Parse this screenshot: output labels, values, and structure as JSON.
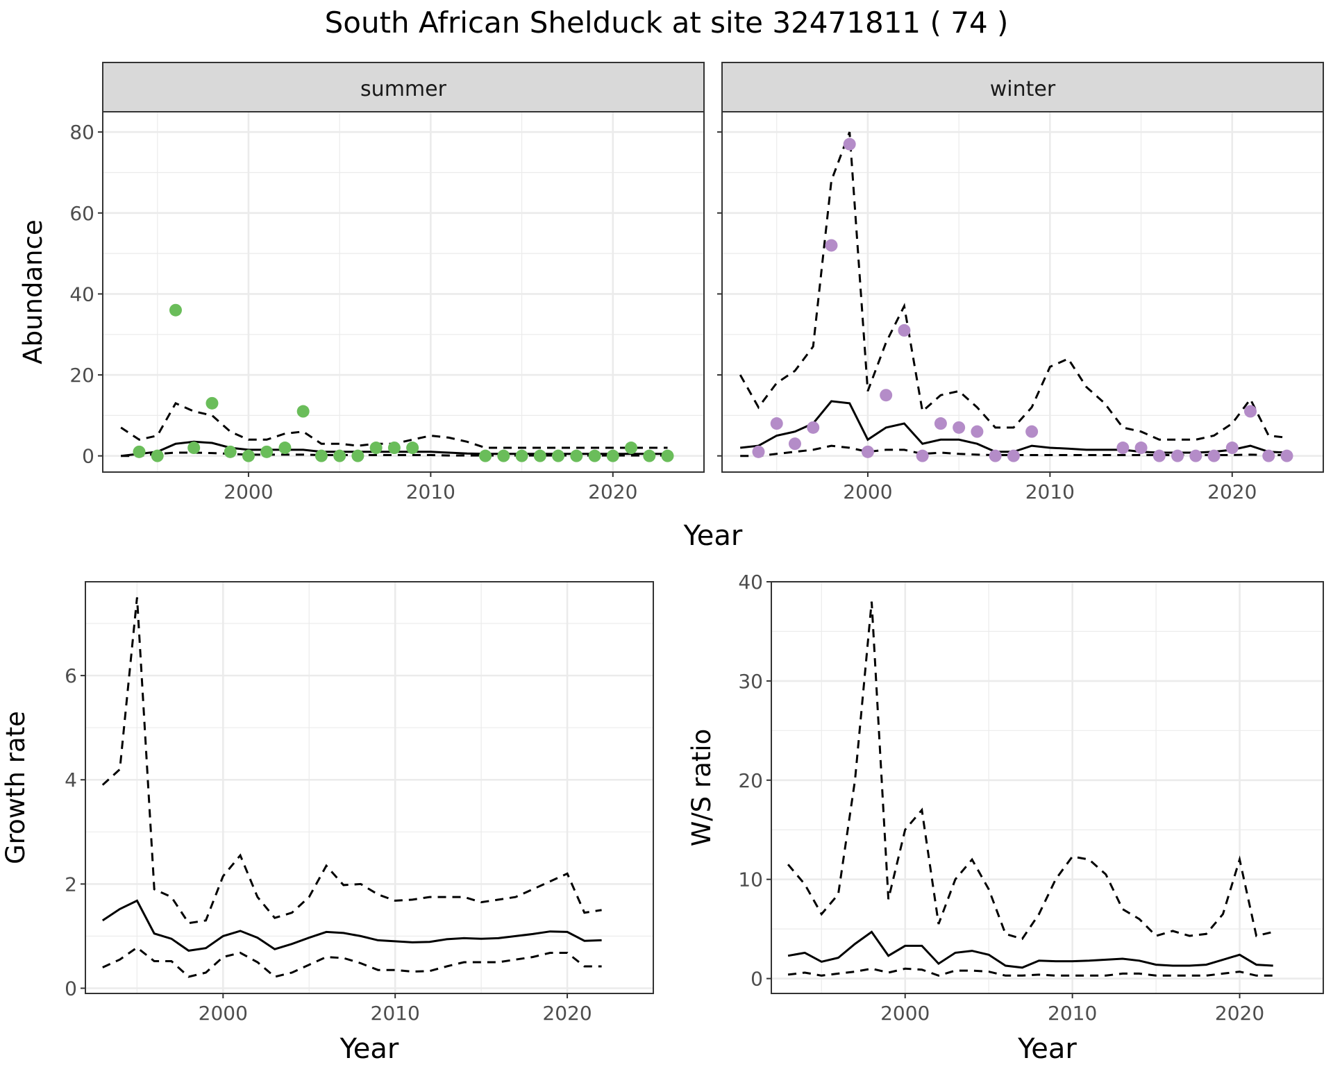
{
  "title": "South African Shelduck at site 32471811 ( 74 )",
  "colors": {
    "summer": "#6abd5a",
    "winter": "#b48cc8",
    "strip": "#d9d9d9",
    "grid": "#ebebeb"
  },
  "chart_data": [
    {
      "type": "line+scatter",
      "panel": "summer",
      "strip_label": "summer",
      "xlabel": "Year",
      "ylabel": "Abundance",
      "xlim": [
        1992,
        2025
      ],
      "ylim": [
        -4,
        85
      ],
      "xticks": [
        2000,
        2010,
        2020
      ],
      "yticks": [
        0,
        20,
        40,
        60,
        80
      ],
      "points": {
        "x": [
          1994,
          1995,
          1996,
          1997,
          1998,
          1999,
          2000,
          2001,
          2002,
          2003,
          2004,
          2005,
          2006,
          2007,
          2008,
          2009,
          2013,
          2014,
          2015,
          2016,
          2017,
          2018,
          2019,
          2020,
          2021,
          2022,
          2023
        ],
        "y": [
          1,
          0,
          36,
          2,
          13,
          1,
          0,
          1,
          2,
          11,
          0,
          0,
          0,
          2,
          2,
          2,
          0,
          0,
          0,
          0,
          0,
          0,
          0,
          0,
          2,
          0,
          0
        ]
      },
      "years": [
        1993,
        1994,
        1995,
        1996,
        1997,
        1998,
        1999,
        2000,
        2001,
        2002,
        2003,
        2004,
        2005,
        2006,
        2007,
        2008,
        2009,
        2010,
        2011,
        2012,
        2013,
        2014,
        2015,
        2016,
        2017,
        2018,
        2019,
        2020,
        2021,
        2022,
        2023
      ],
      "mean": [
        0,
        0.5,
        1,
        3,
        3.5,
        3.2,
        2,
        1.5,
        1.5,
        1.5,
        1.5,
        1,
        1,
        1,
        1,
        1,
        1,
        1,
        0.8,
        0.6,
        0.5,
        0.5,
        0.5,
        0.5,
        0.5,
        0.5,
        0.5,
        0.5,
        0.5,
        0.5,
        0.5
      ],
      "upper": [
        7,
        4,
        5,
        13,
        11,
        10,
        6,
        4,
        4,
        5.5,
        6,
        3,
        3,
        2.5,
        3,
        3,
        4,
        5,
        4.5,
        3.5,
        2,
        2,
        2,
        2,
        2,
        2,
        2,
        2,
        2,
        2,
        2
      ],
      "lower": [
        0,
        0,
        0.5,
        0.8,
        0.8,
        0.7,
        0.5,
        0.3,
        0.3,
        0.3,
        0.3,
        0.2,
        0.2,
        0.2,
        0.2,
        0.2,
        0.2,
        0.2,
        0.1,
        0.1,
        0.1,
        0.1,
        0.1,
        0.1,
        0.1,
        0.1,
        0.1,
        0.1,
        0.1,
        0.1,
        0.1
      ]
    },
    {
      "type": "line+scatter",
      "panel": "winter",
      "strip_label": "winter",
      "xlabel": "Year",
      "ylabel": "Abundance",
      "xlim": [
        1992,
        2025
      ],
      "ylim": [
        -4,
        85
      ],
      "xticks": [
        2000,
        2010,
        2020
      ],
      "yticks": [
        0,
        20,
        40,
        60,
        80
      ],
      "points": {
        "x": [
          1994,
          1995,
          1996,
          1997,
          1998,
          1999,
          2000,
          2001,
          2002,
          2003,
          2004,
          2005,
          2006,
          2007,
          2008,
          2009,
          2014,
          2015,
          2016,
          2017,
          2018,
          2019,
          2020,
          2021,
          2022,
          2023
        ],
        "y": [
          1,
          8,
          3,
          7,
          52,
          77,
          1,
          15,
          31,
          0,
          8,
          7,
          6,
          0,
          0,
          6,
          2,
          2,
          0,
          0,
          0,
          0,
          2,
          11,
          0,
          0
        ]
      },
      "years": [
        1993,
        1994,
        1995,
        1996,
        1997,
        1998,
        1999,
        2000,
        2001,
        2002,
        2003,
        2004,
        2005,
        2006,
        2007,
        2008,
        2009,
        2010,
        2011,
        2012,
        2013,
        2014,
        2015,
        2016,
        2017,
        2018,
        2019,
        2020,
        2021,
        2022,
        2023
      ],
      "mean": [
        2,
        2.5,
        5,
        6,
        8,
        13.5,
        13,
        4,
        7,
        8,
        3,
        4,
        4,
        3,
        1,
        1,
        2.5,
        2,
        1.8,
        1.5,
        1.5,
        1.5,
        1,
        0.8,
        0.8,
        0.8,
        1,
        1.5,
        2.5,
        1,
        0.8
      ],
      "upper": [
        20,
        12,
        18,
        21,
        27,
        68,
        80,
        16,
        28,
        37,
        11,
        15,
        16,
        12,
        7,
        7,
        12,
        22,
        24,
        17,
        13,
        7,
        6,
        4,
        4,
        4,
        5,
        8,
        14,
        5,
        4.5
      ],
      "lower": [
        0,
        0,
        0.5,
        1,
        1.5,
        2.5,
        2,
        1,
        1.5,
        1.5,
        0.5,
        0.8,
        0.5,
        0.3,
        0.2,
        0.2,
        0.2,
        0.2,
        0.2,
        0.2,
        0.2,
        0.2,
        0.2,
        0.2,
        0.2,
        0.2,
        0.2,
        0.2,
        0.3,
        0.2,
        0.2
      ]
    },
    {
      "type": "line",
      "panel": "growth",
      "xlabel": "Year",
      "ylabel": "Growth rate",
      "xlim": [
        1992,
        2025
      ],
      "ylim": [
        -0.1,
        7.8
      ],
      "xticks": [
        2000,
        2010,
        2020
      ],
      "yticks": [
        0,
        2,
        4,
        6
      ],
      "years": [
        1993,
        1994,
        1995,
        1996,
        1997,
        1998,
        1999,
        2000,
        2001,
        2002,
        2003,
        2004,
        2005,
        2006,
        2007,
        2008,
        2009,
        2010,
        2011,
        2012,
        2013,
        2014,
        2015,
        2016,
        2017,
        2018,
        2019,
        2020,
        2021,
        2022
      ],
      "mean": [
        1.3,
        1.52,
        1.68,
        1.05,
        0.95,
        0.72,
        0.77,
        1.0,
        1.1,
        0.97,
        0.75,
        0.85,
        0.97,
        1.08,
        1.06,
        1.0,
        0.92,
        0.9,
        0.88,
        0.89,
        0.94,
        0.96,
        0.95,
        0.96,
        1.0,
        1.04,
        1.09,
        1.08,
        0.91,
        0.92
      ],
      "upper": [
        3.9,
        4.2,
        7.5,
        1.9,
        1.75,
        1.25,
        1.3,
        2.15,
        2.55,
        1.75,
        1.35,
        1.45,
        1.75,
        2.35,
        1.98,
        2.0,
        1.8,
        1.68,
        1.7,
        1.75,
        1.75,
        1.75,
        1.65,
        1.7,
        1.75,
        1.9,
        2.05,
        2.2,
        1.45,
        1.5
      ],
      "lower": [
        0.4,
        0.55,
        0.78,
        0.52,
        0.52,
        0.22,
        0.3,
        0.6,
        0.68,
        0.5,
        0.22,
        0.3,
        0.45,
        0.6,
        0.58,
        0.48,
        0.35,
        0.35,
        0.32,
        0.33,
        0.42,
        0.5,
        0.5,
        0.5,
        0.55,
        0.6,
        0.68,
        0.68,
        0.42,
        0.42
      ]
    },
    {
      "type": "line",
      "panel": "ratio",
      "xlabel": "Year",
      "ylabel": "W/S ratio",
      "xlim": [
        1992,
        2025
      ],
      "ylim": [
        -1.5,
        40
      ],
      "xticks": [
        2000,
        2010,
        2020
      ],
      "yticks": [
        0,
        10,
        20,
        30,
        40
      ],
      "years": [
        1993,
        1994,
        1995,
        1996,
        1997,
        1998,
        1999,
        2000,
        2001,
        2002,
        2003,
        2004,
        2005,
        2006,
        2007,
        2008,
        2009,
        2010,
        2011,
        2012,
        2013,
        2014,
        2015,
        2016,
        2017,
        2018,
        2019,
        2020,
        2021,
        2022
      ],
      "mean": [
        2.3,
        2.6,
        1.7,
        2.1,
        3.5,
        4.7,
        2.3,
        3.3,
        3.3,
        1.5,
        2.6,
        2.8,
        2.4,
        1.3,
        1.1,
        1.8,
        1.75,
        1.75,
        1.8,
        1.9,
        2.0,
        1.8,
        1.4,
        1.3,
        1.3,
        1.4,
        1.9,
        2.4,
        1.4,
        1.3
      ],
      "upper": [
        11.5,
        9.5,
        6.5,
        8.5,
        20,
        38,
        8,
        15,
        17,
        5.5,
        10,
        12,
        9,
        4.5,
        4,
        6.5,
        10,
        12.3,
        12,
        10.5,
        7,
        6,
        4.3,
        4.8,
        4.3,
        4.5,
        6.5,
        12,
        4.3,
        4.7
      ],
      "lower": [
        0.4,
        0.6,
        0.3,
        0.5,
        0.7,
        1.0,
        0.6,
        1.0,
        0.9,
        0.3,
        0.8,
        0.8,
        0.7,
        0.3,
        0.3,
        0.4,
        0.3,
        0.3,
        0.3,
        0.3,
        0.5,
        0.5,
        0.3,
        0.3,
        0.3,
        0.3,
        0.5,
        0.7,
        0.3,
        0.3
      ]
    }
  ],
  "shared_xlabel_top": "Year"
}
